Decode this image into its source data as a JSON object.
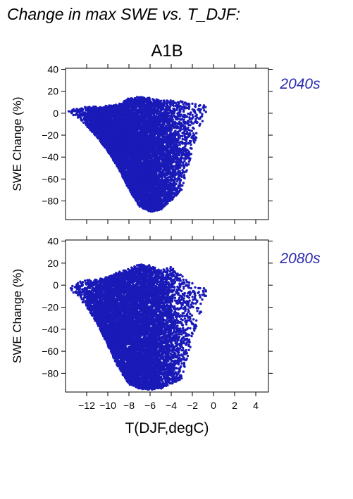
{
  "figure": {
    "title": "Change in max SWE vs. T_DJF:",
    "scenario": "A1B",
    "xlabel": "T(DJF,degC)"
  },
  "colors": {
    "points": "#1a1ab8",
    "period_label": "#2a2ab0",
    "axes": "#000000"
  },
  "chart_data": [
    {
      "type": "scatter",
      "period": "2040s",
      "ylabel": "SWE Change (%)",
      "xlim": [
        -14,
        5.2
      ],
      "ylim": [
        -97,
        41
      ],
      "x_ticks": [
        -12,
        -10,
        -8,
        -6,
        -4,
        -2,
        0,
        2,
        4
      ],
      "y_ticks": [
        40,
        20,
        0,
        -20,
        -40,
        -60,
        -80
      ],
      "grid": false,
      "cloud_envelope": {
        "x": [
          -13.8,
          -13,
          -12,
          -11,
          -10,
          -9,
          -8,
          -7,
          -6,
          -5,
          -4,
          -3,
          -2,
          -1.2,
          -0.5
        ],
        "y_max": [
          2,
          5,
          6,
          6,
          7,
          8,
          14,
          15,
          14,
          12,
          12,
          12,
          9,
          8,
          6
        ],
        "y_min": [
          1,
          -3,
          -12,
          -22,
          -35,
          -50,
          -70,
          -85,
          -90,
          -88,
          -80,
          -70,
          -35,
          -10,
          0
        ]
      },
      "approx_point_count": 9000
    },
    {
      "type": "scatter",
      "period": "2080s",
      "ylabel": "SWE Change (%)",
      "xlim": [
        -14,
        5.2
      ],
      "ylim": [
        -97,
        41
      ],
      "x_ticks": [
        -12,
        -10,
        -8,
        -6,
        -4,
        -2,
        0,
        2,
        4
      ],
      "x_tick_labels": [
        "-12",
        "-10",
        "-8",
        "-6",
        "-4",
        "-2",
        "0",
        "2",
        "4"
      ],
      "y_ticks": [
        40,
        20,
        0,
        -20,
        -40,
        -60,
        -80
      ],
      "grid": false,
      "cloud_envelope": {
        "x": [
          -13.8,
          -13,
          -12,
          -11,
          -10,
          -9,
          -8,
          -7,
          -6,
          -5,
          -4,
          -3,
          -2,
          -1.2,
          -0.5
        ],
        "y_max": [
          -2,
          2,
          5,
          5,
          8,
          12,
          15,
          19,
          18,
          14,
          17,
          10,
          2,
          -2,
          -4
        ],
        "y_min": [
          -4,
          -8,
          -20,
          -35,
          -55,
          -75,
          -90,
          -94,
          -95,
          -94,
          -90,
          -85,
          -50,
          -25,
          -10
        ]
      },
      "approx_point_count": 9000
    }
  ]
}
